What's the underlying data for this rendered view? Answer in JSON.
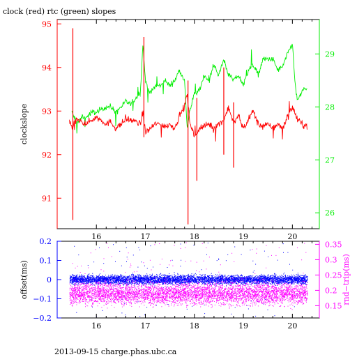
{
  "page": {
    "title": "clock (red) rtc (green) slopes",
    "footer": "2013-09-15 charge.phas.ubc.ca"
  },
  "colors": {
    "red": "#ff0000",
    "green": "#00ee00",
    "blue": "#0000ff",
    "magenta": "#ff00ff",
    "axis": "#000000"
  },
  "chart_data": [
    {
      "type": "line",
      "title": "clock (red) rtc (green) slopes",
      "xlabel": "",
      "xlim": [
        15.2,
        20.55
      ],
      "x_ticks": [
        "16",
        "17",
        "18",
        "19",
        "20"
      ],
      "x_tick_values": [
        16,
        17,
        18,
        19,
        20
      ],
      "left_axis": {
        "label": "clockslope",
        "lim": [
          90.3,
          95.1
        ],
        "ticks": [
          "91",
          "92",
          "93",
          "94",
          "95"
        ],
        "tick_values": [
          91,
          92,
          93,
          94,
          95
        ],
        "color": "#ff0000"
      },
      "right_axis": {
        "label": "",
        "lim": [
          25.7,
          29.65
        ],
        "ticks": [
          "26",
          "27",
          "28",
          "29"
        ],
        "tick_values": [
          26,
          27,
          28,
          29
        ],
        "color": "#00ee00"
      },
      "series": [
        {
          "name": "clock",
          "axis": "left",
          "color": "#ff0000",
          "x": [
            15.45,
            15.5,
            15.55,
            15.6,
            15.7,
            15.8,
            15.9,
            16.0,
            16.1,
            16.2,
            16.3,
            16.4,
            16.5,
            16.6,
            16.7,
            16.8,
            16.9,
            16.95,
            17.0,
            17.1,
            17.2,
            17.3,
            17.4,
            17.5,
            17.6,
            17.7,
            17.8,
            17.85,
            17.9,
            18.0,
            18.1,
            18.2,
            18.3,
            18.4,
            18.5,
            18.6,
            18.7,
            18.8,
            18.9,
            19.0,
            19.1,
            19.2,
            19.3,
            19.4,
            19.5,
            19.6,
            19.7,
            19.8,
            19.9,
            20.0,
            20.1,
            20.2,
            20.3
          ],
          "y": [
            92.8,
            92.6,
            92.7,
            92.8,
            92.75,
            92.7,
            92.8,
            92.85,
            92.8,
            92.7,
            92.75,
            92.6,
            92.7,
            92.8,
            92.8,
            92.75,
            92.7,
            93.0,
            92.5,
            92.6,
            92.7,
            92.7,
            92.65,
            92.7,
            92.6,
            92.9,
            93.1,
            93.4,
            92.8,
            92.4,
            92.6,
            92.65,
            92.7,
            92.6,
            92.7,
            92.8,
            93.1,
            92.7,
            92.9,
            92.6,
            92.8,
            93.0,
            92.7,
            92.65,
            92.7,
            92.6,
            92.7,
            92.6,
            92.9,
            93.1,
            92.8,
            92.7,
            92.65
          ],
          "spikes": [
            {
              "x": 15.52,
              "min": 90.5,
              "max": 94.9
            },
            {
              "x": 16.97,
              "min": 92.4,
              "max": 94.7
            },
            {
              "x": 17.87,
              "min": 90.4,
              "max": 93.7
            },
            {
              "x": 18.05,
              "min": 91.4,
              "max": 93.3
            },
            {
              "x": 18.6,
              "min": 92.0,
              "max": 94.0
            },
            {
              "x": 18.8,
              "min": 91.7,
              "max": 93.2
            }
          ]
        },
        {
          "name": "rtc",
          "axis": "right",
          "color": "#00ee00",
          "x": [
            15.5,
            15.6,
            15.7,
            15.8,
            15.9,
            16.0,
            16.1,
            16.2,
            16.3,
            16.4,
            16.5,
            16.6,
            16.7,
            16.8,
            16.9,
            16.95,
            17.0,
            17.1,
            17.2,
            17.3,
            17.4,
            17.5,
            17.6,
            17.7,
            17.8,
            17.85,
            17.9,
            18.0,
            18.1,
            18.2,
            18.3,
            18.4,
            18.5,
            18.6,
            18.7,
            18.8,
            18.9,
            19.0,
            19.1,
            19.2,
            19.3,
            19.4,
            19.5,
            19.6,
            19.7,
            19.8,
            19.9,
            20.0,
            20.05,
            20.1,
            20.2,
            20.3
          ],
          "y": [
            27.9,
            27.7,
            27.8,
            27.8,
            27.9,
            27.9,
            27.95,
            28.0,
            28.0,
            27.9,
            28.0,
            28.1,
            28.05,
            28.15,
            28.3,
            29.2,
            28.5,
            28.25,
            28.4,
            28.4,
            28.5,
            28.4,
            28.5,
            28.7,
            28.5,
            27.6,
            27.9,
            28.25,
            28.3,
            28.6,
            28.5,
            28.8,
            28.6,
            28.9,
            28.6,
            28.5,
            28.6,
            28.4,
            28.7,
            28.8,
            28.6,
            28.9,
            28.9,
            28.9,
            28.7,
            28.75,
            29.0,
            29.2,
            28.5,
            28.1,
            28.3,
            28.35
          ]
        }
      ]
    },
    {
      "type": "scatter",
      "xlabel": "",
      "xlim": [
        15.2,
        20.55
      ],
      "x_ticks": [
        "16",
        "17",
        "18",
        "19",
        "20"
      ],
      "x_tick_values": [
        16,
        17,
        18,
        19,
        20
      ],
      "left_axis": {
        "label": "offset(ms)",
        "lim": [
          -0.2,
          0.2
        ],
        "ticks": [
          "0.2",
          "0.1",
          "0",
          "−0.1",
          "−0.2"
        ],
        "tick_values": [
          0.2,
          0.1,
          0,
          -0.1,
          -0.2
        ],
        "color": "#0000ff"
      },
      "right_axis": {
        "label": "rnd−trip(ms)",
        "lim": [
          0.11,
          0.36
        ],
        "ticks": [
          "0.35",
          "0.3",
          "0.25",
          "0.2",
          "0.15"
        ],
        "tick_values": [
          0.35,
          0.3,
          0.25,
          0.2,
          0.15
        ],
        "color": "#ff00ff"
      },
      "series": [
        {
          "name": "offset",
          "axis": "left",
          "color": "#0000ff",
          "x_range": [
            15.45,
            20.3
          ],
          "center": 0.0,
          "spread": 0.02,
          "outlier_range": [
            -0.2,
            0.2
          ]
        },
        {
          "name": "rnd-trip",
          "axis": "right",
          "color": "#ff00ff",
          "x_range": [
            15.45,
            20.3
          ],
          "center": 0.19,
          "spread": 0.03,
          "outlier_range": [
            0.14,
            0.36
          ]
        }
      ]
    }
  ]
}
